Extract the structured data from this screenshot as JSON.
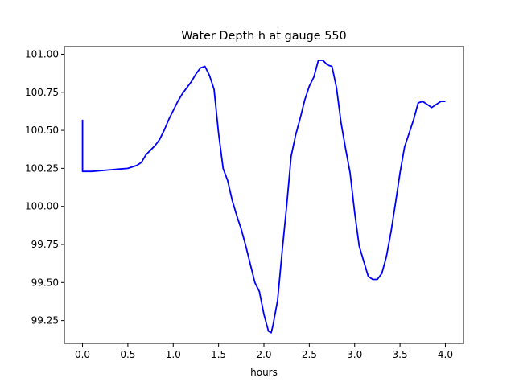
{
  "chart_data": {
    "type": "line",
    "title": "Water Depth h at gauge 550",
    "xlabel": "hours",
    "ylabel": "",
    "xlim": [
      -0.2,
      4.2
    ],
    "ylim": [
      99.1,
      101.05
    ],
    "xticks": [
      0.0,
      0.5,
      1.0,
      1.5,
      2.0,
      2.5,
      3.0,
      3.5,
      4.0
    ],
    "xtick_labels": [
      "0.0",
      "0.5",
      "1.0",
      "1.5",
      "2.0",
      "2.5",
      "3.0",
      "3.5",
      "4.0"
    ],
    "yticks": [
      99.25,
      99.5,
      99.75,
      100.0,
      100.25,
      100.5,
      100.75,
      101.0
    ],
    "ytick_labels": [
      "99.25",
      "99.50",
      "99.75",
      "100.00",
      "100.25",
      "100.50",
      "100.75",
      "101.00"
    ],
    "grid": false,
    "series": [
      {
        "color": "#0000ff",
        "x": [
          0.0,
          0.0,
          0.1,
          0.2,
          0.3,
          0.4,
          0.5,
          0.55,
          0.6,
          0.65,
          0.7,
          0.75,
          0.8,
          0.85,
          0.9,
          0.95,
          1.0,
          1.05,
          1.1,
          1.15,
          1.2,
          1.25,
          1.3,
          1.35,
          1.4,
          1.45,
          1.5,
          1.55,
          1.6,
          1.65,
          1.7,
          1.75,
          1.8,
          1.85,
          1.9,
          1.95,
          2.0,
          2.05,
          2.08,
          2.1,
          2.15,
          2.2,
          2.25,
          2.3,
          2.35,
          2.4,
          2.45,
          2.5,
          2.55,
          2.6,
          2.65,
          2.7,
          2.75,
          2.8,
          2.85,
          2.9,
          2.95,
          3.0,
          3.05,
          3.1,
          3.15,
          3.2,
          3.25,
          3.3,
          3.35,
          3.4,
          3.45,
          3.5,
          3.55,
          3.6,
          3.65,
          3.7,
          3.75,
          3.8,
          3.85,
          3.9,
          3.95,
          4.0
        ],
        "y": [
          100.57,
          100.23,
          100.23,
          100.235,
          100.24,
          100.245,
          100.25,
          100.26,
          100.27,
          100.29,
          100.34,
          100.37,
          100.4,
          100.44,
          100.5,
          100.57,
          100.63,
          100.69,
          100.74,
          100.78,
          100.82,
          100.87,
          100.91,
          100.92,
          100.86,
          100.77,
          100.48,
          100.25,
          100.17,
          100.04,
          99.94,
          99.85,
          99.74,
          99.62,
          99.5,
          99.44,
          99.29,
          99.18,
          99.17,
          99.22,
          99.38,
          99.7,
          100.0,
          100.33,
          100.47,
          100.58,
          100.7,
          100.79,
          100.85,
          100.96,
          100.96,
          100.93,
          100.92,
          100.78,
          100.55,
          100.38,
          100.22,
          99.96,
          99.74,
          99.64,
          99.54,
          99.52,
          99.52,
          99.56,
          99.67,
          99.83,
          100.02,
          100.22,
          100.39,
          100.48,
          100.57,
          100.68,
          100.69,
          100.67,
          100.65,
          100.67,
          100.69,
          100.69
        ]
      }
    ]
  }
}
